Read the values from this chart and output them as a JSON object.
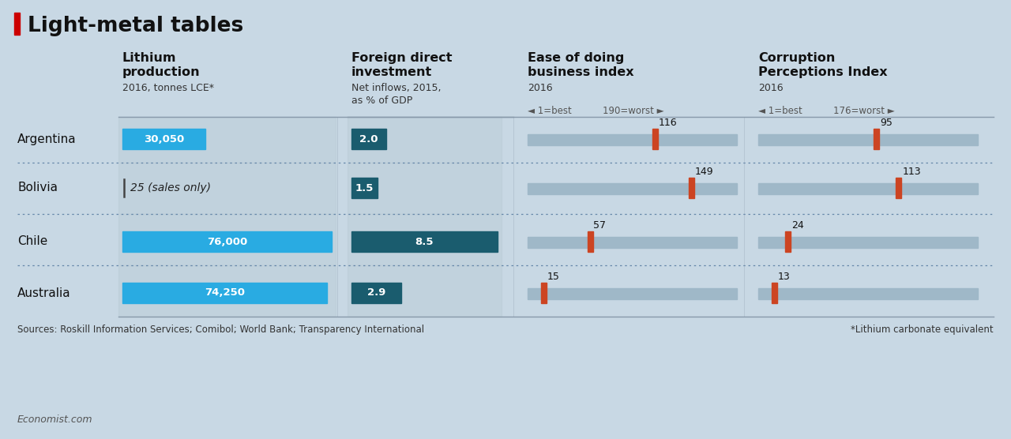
{
  "title": "Light-metal tables",
  "background_color": "#c8d8e4",
  "row_bg_color": "#bccdd8",
  "countries": [
    "Argentina",
    "Bolivia",
    "Chile",
    "Australia"
  ],
  "lithium_values": [
    30050,
    25,
    76000,
    74250
  ],
  "lithium_labels": [
    "30,050",
    "25 (sales only)",
    "76,000",
    "74,250"
  ],
  "lithium_max": 76000,
  "fdi_values": [
    2.0,
    1.5,
    8.5,
    2.9
  ],
  "fdi_labels": [
    "2.0",
    "1.5",
    "8.5",
    "2.9"
  ],
  "fdi_max": 8.5,
  "eodb_values": [
    116,
    149,
    57,
    15
  ],
  "eodb_max": 190,
  "cpi_values": [
    95,
    113,
    24,
    13
  ],
  "cpi_max": 176,
  "lithium_bar_color": "#29abe2",
  "fdi_bar_color": "#1a5c6e",
  "eodb_bar_bg": "#9fb8c8",
  "eodb_marker_color": "#cc4422",
  "cpi_bar_bg": "#9fb8c8",
  "cpi_marker_color": "#cc4422",
  "source_text": "Sources: Roskill Information Services; Comibol; World Bank; Transparency International",
  "footnote_text": "*Lithium carbonate equivalent",
  "economist_text": "Economist.com",
  "title_bar_color": "#cc0000",
  "sep_line_color": "#8899aa",
  "dot_sep_color": "#6688aa"
}
